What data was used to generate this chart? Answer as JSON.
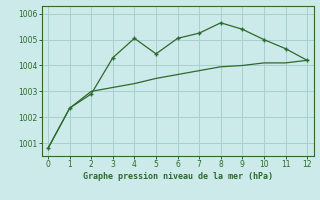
{
  "line1_x": [
    0,
    1,
    2,
    3,
    4,
    5,
    6,
    7,
    8,
    9,
    10,
    11,
    12
  ],
  "line1_y": [
    1000.8,
    1002.35,
    1002.9,
    1004.3,
    1005.05,
    1004.45,
    1005.05,
    1005.25,
    1005.65,
    1005.4,
    1005.0,
    1004.65,
    1004.2
  ],
  "line2_x": [
    0,
    1,
    2,
    3,
    4,
    5,
    6,
    7,
    8,
    9,
    10,
    11,
    12
  ],
  "line2_y": [
    1000.8,
    1002.35,
    1003.0,
    1003.15,
    1003.3,
    1003.5,
    1003.65,
    1003.8,
    1003.95,
    1004.0,
    1004.1,
    1004.1,
    1004.2
  ],
  "line_color": "#2d6a2d",
  "marker": "+",
  "title": "Graphe pression niveau de la mer (hPa)",
  "xlim": [
    -0.3,
    12.3
  ],
  "ylim": [
    1000.5,
    1006.3
  ],
  "xticks": [
    0,
    1,
    2,
    3,
    4,
    5,
    6,
    7,
    8,
    9,
    10,
    11,
    12
  ],
  "yticks": [
    1001,
    1002,
    1003,
    1004,
    1005,
    1006
  ],
  "bg_color": "#cceaea",
  "grid_color": "#aacfcf"
}
